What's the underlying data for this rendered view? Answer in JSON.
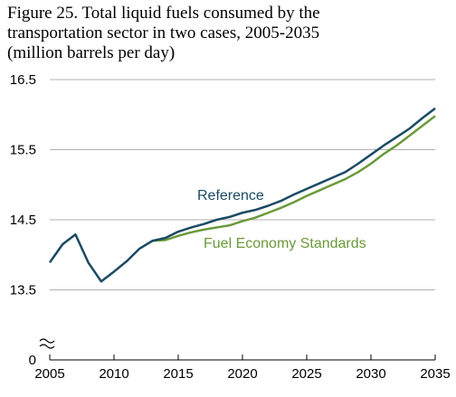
{
  "chart_data": {
    "type": "line",
    "title": [
      "Figure 25. Total liquid fuels consumed by the",
      "transportation sector in two cases, 2005-2035"
    ],
    "subtitle": "(million barrels per day)",
    "x": [
      2005,
      2006,
      2007,
      2008,
      2009,
      2010,
      2011,
      2012,
      2013,
      2014,
      2015,
      2016,
      2017,
      2018,
      2019,
      2020,
      2021,
      2022,
      2023,
      2024,
      2025,
      2026,
      2027,
      2028,
      2029,
      2030,
      2031,
      2032,
      2033,
      2034,
      2035
    ],
    "series": [
      {
        "name": "Reference",
        "color": "#1b4a63",
        "values": [
          13.89,
          14.15,
          14.29,
          13.89,
          13.62,
          13.76,
          13.91,
          14.09,
          14.2,
          14.24,
          14.33,
          14.39,
          14.44,
          14.5,
          14.54,
          14.6,
          14.64,
          14.7,
          14.77,
          14.86,
          14.94,
          15.02,
          15.1,
          15.18,
          15.3,
          15.43,
          15.56,
          15.68,
          15.8,
          15.95,
          16.09
        ]
      },
      {
        "name": "Fuel Economy Standards",
        "color": "#6a9a3a",
        "values": [
          null,
          null,
          null,
          null,
          null,
          null,
          null,
          null,
          14.2,
          14.21,
          14.27,
          14.32,
          14.36,
          14.39,
          14.42,
          14.48,
          14.53,
          14.6,
          14.67,
          14.75,
          14.84,
          14.92,
          15.0,
          15.08,
          15.18,
          15.3,
          15.44,
          15.56,
          15.7,
          15.84,
          15.98
        ]
      }
    ],
    "xlim": [
      2005,
      2035
    ],
    "xticks": [
      2005,
      2010,
      2015,
      2020,
      2025,
      2030,
      2035
    ],
    "ylim": [
      12.5,
      16.5
    ],
    "yticks": [
      0,
      13.5,
      14.5,
      15.5,
      16.5
    ],
    "axis_break": true,
    "grid": true
  }
}
